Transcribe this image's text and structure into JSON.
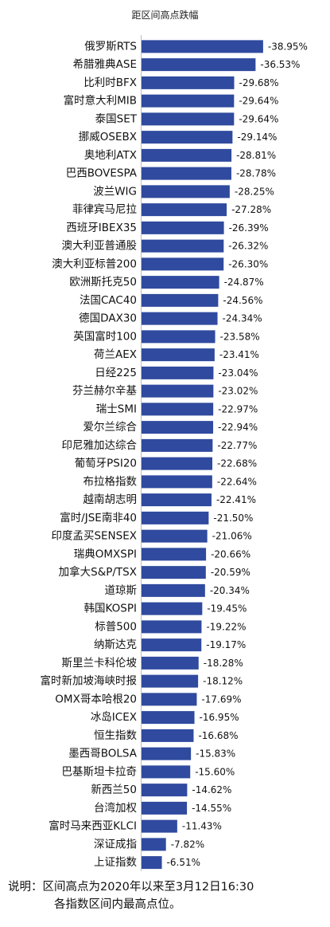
{
  "chart_data": {
    "type": "bar",
    "orientation": "horizontal",
    "title": "距区间高点跌幅",
    "categories": [
      "俄罗斯RTS",
      "希腊雅典ASE",
      "比利时BFX",
      "富时意大利MIB",
      "泰国SET",
      "挪威OSEBX",
      "奥地利ATX",
      "巴西BOVESPA",
      "波兰WIG",
      "菲律宾马尼拉",
      "西班牙IBEX35",
      "澳大利亚普通股",
      "澳大利亚标普200",
      "欧洲斯托克50",
      "法国CAC40",
      "德国DAX30",
      "英国富时100",
      "荷兰AEX",
      "日经225",
      "芬兰赫尔辛基",
      "瑞士SMI",
      "爱尔兰综合",
      "印尼雅加达综合",
      "葡萄牙PSI20",
      "布拉格指数",
      "越南胡志明",
      "富时/JSE南非40",
      "印度孟买SENSEX",
      "瑞典OMXSPI",
      "加拿大S&P/TSX",
      "道琼斯",
      "韩国KOSPI",
      "标普500",
      "纳斯达克",
      "斯里兰卡科伦坡",
      "富时新加坡海峡时报",
      "OMX哥本哈根20",
      "冰岛ICEX",
      "恒生指数",
      "墨西哥BOLSA",
      "巴基斯坦卡拉奇",
      "新西兰50",
      "台湾加权",
      "富时马来西亚KLCI",
      "深证成指",
      "上证指数"
    ],
    "values": [
      -38.95,
      -36.53,
      -29.68,
      -29.64,
      -29.64,
      -29.14,
      -28.81,
      -28.78,
      -28.25,
      -27.28,
      -26.39,
      -26.32,
      -26.3,
      -24.87,
      -24.56,
      -24.34,
      -23.58,
      -23.41,
      -23.04,
      -23.02,
      -22.97,
      -22.94,
      -22.77,
      -22.68,
      -22.64,
      -22.41,
      -21.5,
      -21.06,
      -20.66,
      -20.59,
      -20.34,
      -19.45,
      -19.22,
      -19.17,
      -18.28,
      -18.12,
      -17.69,
      -16.95,
      -16.68,
      -15.83,
      -15.6,
      -14.62,
      -14.55,
      -11.43,
      -7.82,
      -6.51
    ],
    "value_labels": [
      "-38.95%",
      "-36.53%",
      "-29.68%",
      "-29.64%",
      "-29.64%",
      "-29.14%",
      "-28.81%",
      "-28.78%",
      "-28.25%",
      "-27.28%",
      "-26.39%",
      "-26.32%",
      "-26.30%",
      "-24.87%",
      "-24.56%",
      "-24.34%",
      "-23.58%",
      "-23.41%",
      "-23.04%",
      "-23.02%",
      "-22.97%",
      "-22.94%",
      "-22.77%",
      "-22.68%",
      "-22.64%",
      "-22.41%",
      "-21.50%",
      "-21.06%",
      "-20.66%",
      "-20.59%",
      "-20.34%",
      "-19.45%",
      "-19.22%",
      "-19.17%",
      "-18.28%",
      "-18.12%",
      "-17.69%",
      "-16.95%",
      "-16.68%",
      "-15.83%",
      "-15.60%",
      "-14.62%",
      "-14.55%",
      "-11.43%",
      "-7.82%",
      "-6.51%"
    ],
    "unit": "%",
    "bar_color": "#2F4A9E",
    "grid": false,
    "legend": "none"
  },
  "note": {
    "line1": "说明：区间高点为2020年以来至3月12日16:30",
    "line2": "各指数区间内最高点位。"
  }
}
